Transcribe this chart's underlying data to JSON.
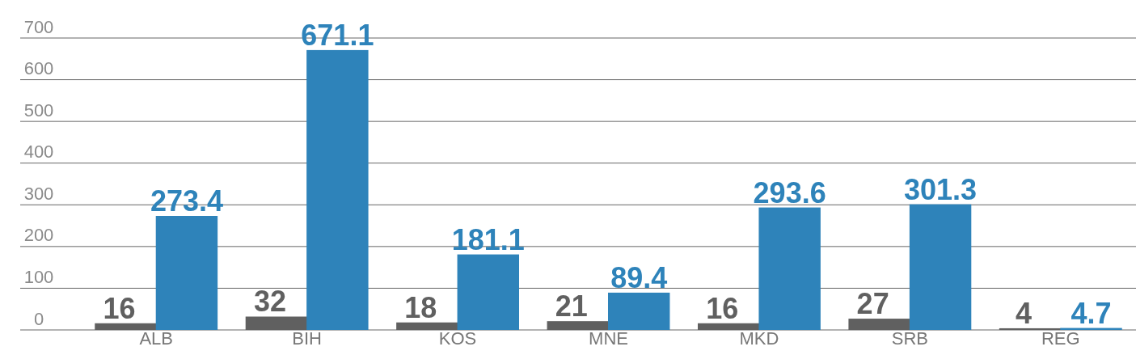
{
  "chart_data": {
    "type": "bar",
    "categories": [
      "ALB",
      "BIH",
      "KOS",
      "MNE",
      "MKD",
      "SRB",
      "REG"
    ],
    "series": [
      {
        "color": "#606060",
        "values": [
          16,
          32,
          18,
          21,
          16,
          27,
          4
        ]
      },
      {
        "color": "#2e83ba",
        "values": [
          273.4,
          671.1,
          181.1,
          89.4,
          293.6,
          301.3,
          4.7
        ]
      }
    ],
    "ylim": [
      0,
      700
    ],
    "yticks": [
      0,
      100,
      200,
      300,
      400,
      500,
      600,
      700
    ],
    "grid": "y",
    "data_labels": true
  }
}
